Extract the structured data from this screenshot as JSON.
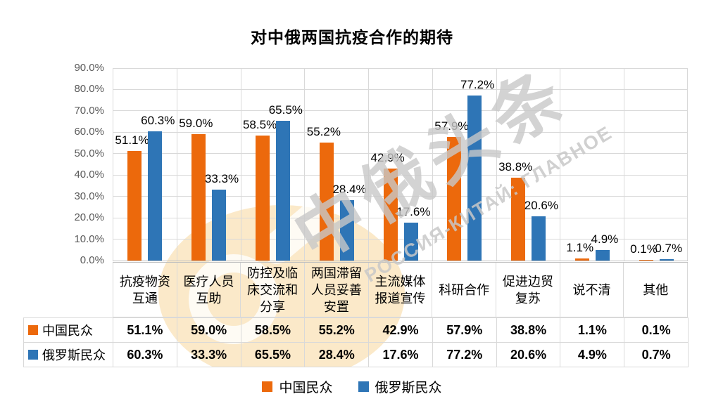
{
  "title": "对中俄两国抗疫合作的期待",
  "watermark": {
    "cn": "中俄头条",
    "ru": "РОССИЯ-КИТАЙ: ГЛАВНОЕ"
  },
  "colors": {
    "china": "#ec690c",
    "russia": "#2e75b6",
    "gridline": "#d9d9d9"
  },
  "chart_data": {
    "type": "bar",
    "title": "对中俄两国抗疫合作的期待",
    "categories": [
      "抗疫物资互通",
      "医疗人员互助",
      "防控及临床交流和分享",
      "两国滞留人员妥善安置",
      "主流媒体报道宣传",
      "科研合作",
      "促进边贸复苏",
      "说不清",
      "其他"
    ],
    "series": [
      {
        "name": "中国民众",
        "color": "#ec690c",
        "values": [
          51.1,
          59.0,
          58.5,
          55.2,
          42.9,
          57.9,
          38.8,
          1.1,
          0.1
        ]
      },
      {
        "name": "俄罗斯民众",
        "color": "#2e75b6",
        "values": [
          60.3,
          33.3,
          65.5,
          28.4,
          17.6,
          77.2,
          20.6,
          4.9,
          0.7
        ]
      }
    ],
    "ylim": [
      0,
      90
    ],
    "ytick_step": 10,
    "y_ticks": [
      "0.0%",
      "10.0%",
      "20.0%",
      "30.0%",
      "40.0%",
      "50.0%",
      "60.0%",
      "70.0%",
      "80.0%",
      "90.0%"
    ],
    "value_suffix": "%",
    "grid": true,
    "legend_position": "bottom",
    "data_table": true
  }
}
